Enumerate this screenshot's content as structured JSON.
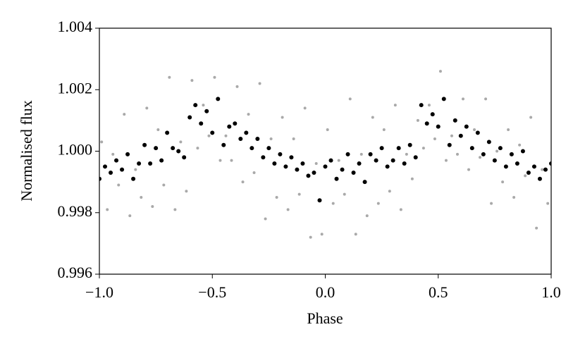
{
  "chart_data": {
    "type": "scatter",
    "xlabel": "Phase",
    "ylabel": "Normalised flux",
    "xlim": [
      -1.0,
      1.0
    ],
    "xticks": [
      {
        "value": -1.0,
        "label": "−1.0"
      },
      {
        "value": -0.5,
        "label": "−0.5"
      },
      {
        "value": 0.0,
        "label": "0.0"
      },
      0.5,
      {
        "value": 1.0,
        "label": "1.0"
      }
    ],
    "ylim": [
      0.996,
      1.004
    ],
    "yticks": [
      0.996,
      0.998,
      {
        "value": 1.0,
        "label": "1.000"
      },
      1.002,
      1.004
    ],
    "series": [
      {
        "color": "#a9a9a9",
        "x": [
          -0.99,
          -0.965,
          -0.94,
          -0.915,
          -0.89,
          -0.865,
          -0.84,
          -0.815,
          -0.79,
          -0.765,
          -0.74,
          -0.715,
          -0.69,
          -0.665,
          -0.64,
          -0.615,
          -0.59,
          -0.565,
          -0.54,
          -0.515,
          -0.49,
          -0.465,
          -0.44,
          -0.415,
          -0.39,
          -0.365,
          -0.34,
          -0.315,
          -0.29,
          -0.265,
          -0.24,
          -0.215,
          -0.19,
          -0.165,
          -0.14,
          -0.115,
          -0.09,
          -0.065,
          -0.04,
          -0.015,
          0.01,
          0.035,
          0.06,
          0.085,
          0.11,
          0.135,
          0.16,
          0.185,
          0.21,
          0.235,
          0.26,
          0.285,
          0.31,
          0.335,
          0.36,
          0.385,
          0.41,
          0.435,
          0.46,
          0.485,
          0.51,
          0.535,
          0.56,
          0.585,
          0.61,
          0.635,
          0.66,
          0.685,
          0.71,
          0.735,
          0.76,
          0.785,
          0.81,
          0.835,
          0.86,
          0.885,
          0.91,
          0.935,
          0.96,
          0.985
        ],
        "values": [
          1.0003,
          0.9981,
          0.9999,
          0.9989,
          1.0012,
          0.9979,
          0.9994,
          0.9985,
          1.0014,
          0.9982,
          1.0007,
          0.9989,
          1.0024,
          0.9981,
          1.0003,
          0.9987,
          1.0023,
          1.0001,
          1.0015,
          1.0005,
          1.0024,
          0.9997,
          1.0005,
          0.9997,
          1.0021,
          0.999,
          1.0012,
          0.9993,
          1.0022,
          0.9978,
          1.0004,
          0.9985,
          1.0011,
          0.9981,
          1.0004,
          0.9986,
          1.0014,
          0.9972,
          0.9996,
          0.9973,
          1.0007,
          0.9983,
          0.9997,
          0.9986,
          1.0017,
          0.9973,
          0.9999,
          0.9979,
          1.0011,
          0.9983,
          1.0007,
          0.9987,
          1.0015,
          0.9981,
          0.9999,
          0.9991,
          1.001,
          1.0001,
          1.0015,
          1.0004,
          1.0026,
          0.9997,
          1.0005,
          0.9999,
          1.0017,
          0.9994,
          1.0007,
          0.9998,
          1.0017,
          0.9983,
          1.0,
          0.999,
          1.0007,
          0.9985,
          1.0002,
          0.9992,
          1.0011,
          0.9975,
          0.9994,
          0.9983
        ]
      },
      {
        "color": "#000000",
        "x": [
          -1.0,
          -0.975,
          -0.95,
          -0.925,
          -0.9,
          -0.875,
          -0.85,
          -0.825,
          -0.8,
          -0.775,
          -0.75,
          -0.725,
          -0.7,
          -0.675,
          -0.65,
          -0.625,
          -0.6,
          -0.575,
          -0.55,
          -0.525,
          -0.5,
          -0.475,
          -0.45,
          -0.425,
          -0.4,
          -0.375,
          -0.35,
          -0.325,
          -0.3,
          -0.275,
          -0.25,
          -0.225,
          -0.2,
          -0.175,
          -0.15,
          -0.125,
          -0.1,
          -0.075,
          -0.05,
          -0.025,
          0.0,
          0.025,
          0.05,
          0.075,
          0.1,
          0.125,
          0.15,
          0.175,
          0.2,
          0.225,
          0.25,
          0.275,
          0.3,
          0.325,
          0.35,
          0.375,
          0.4,
          0.425,
          0.45,
          0.475,
          0.5,
          0.525,
          0.55,
          0.575,
          0.6,
          0.625,
          0.65,
          0.675,
          0.7,
          0.725,
          0.75,
          0.775,
          0.8,
          0.825,
          0.85,
          0.875,
          0.9,
          0.925,
          0.95,
          0.975,
          1.0
        ],
        "values": [
          0.9991,
          0.9995,
          0.9993,
          0.9997,
          0.9994,
          0.9999,
          0.9991,
          0.9996,
          1.0002,
          0.9996,
          1.0001,
          0.9997,
          1.0006,
          1.0001,
          1.0,
          0.9998,
          1.0011,
          1.0015,
          1.0009,
          1.0013,
          1.0006,
          1.0017,
          1.0002,
          1.0008,
          1.0009,
          1.0004,
          1.0006,
          1.0001,
          1.0004,
          0.9998,
          1.0001,
          0.9996,
          0.9999,
          0.9995,
          0.9998,
          0.9994,
          0.9996,
          0.9992,
          0.9993,
          0.9984,
          0.9995,
          0.9997,
          0.9991,
          0.9994,
          0.9999,
          0.9993,
          0.9996,
          0.999,
          0.9999,
          0.9997,
          1.0001,
          0.9995,
          0.9997,
          1.0001,
          0.9996,
          1.0002,
          0.9998,
          1.0015,
          1.0009,
          1.0012,
          1.0008,
          1.0017,
          1.0002,
          1.001,
          1.0005,
          1.0008,
          1.0001,
          1.0006,
          0.9999,
          1.0003,
          0.9997,
          1.0001,
          0.9995,
          0.9999,
          0.9996,
          1.0,
          0.9993,
          0.9995,
          0.9991,
          0.9994,
          0.9996
        ]
      }
    ]
  }
}
